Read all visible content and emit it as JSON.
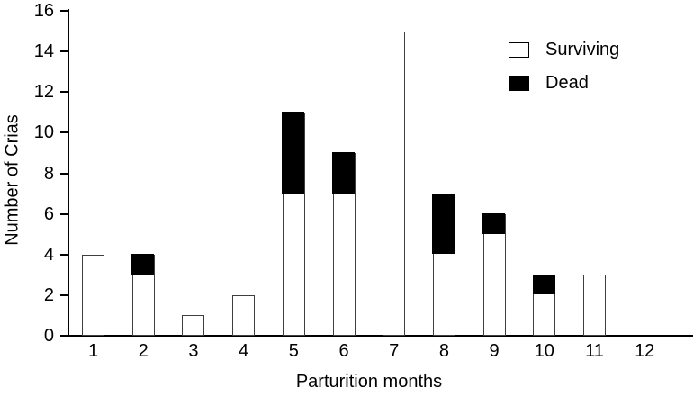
{
  "chart_data": {
    "type": "bar",
    "subtype": "stacked-vertical",
    "title": "",
    "xlabel": "Parturition months",
    "ylabel": "Number of Crias",
    "categories": [
      "1",
      "2",
      "3",
      "4",
      "5",
      "6",
      "7",
      "8",
      "9",
      "10",
      "11",
      "12"
    ],
    "series": [
      {
        "name": "Surviving",
        "color": "#ffffff",
        "values": [
          4,
          3,
          1,
          2,
          7,
          7,
          15,
          4,
          5,
          2,
          3,
          0
        ]
      },
      {
        "name": "Dead",
        "color": "#000000",
        "values": [
          0,
          1,
          0,
          0,
          4,
          2,
          0,
          3,
          1,
          1,
          0,
          0
        ]
      }
    ],
    "ylim": [
      0,
      16
    ],
    "yticks": [
      0,
      2,
      4,
      6,
      8,
      10,
      12,
      14,
      16
    ],
    "grid": false,
    "legend_position": "top-right"
  },
  "colors": {
    "axis": "#000000",
    "bar_outline": "#3f3f3f",
    "surviving_fill": "#ffffff",
    "dead_fill": "#000000",
    "background": "#ffffff"
  }
}
